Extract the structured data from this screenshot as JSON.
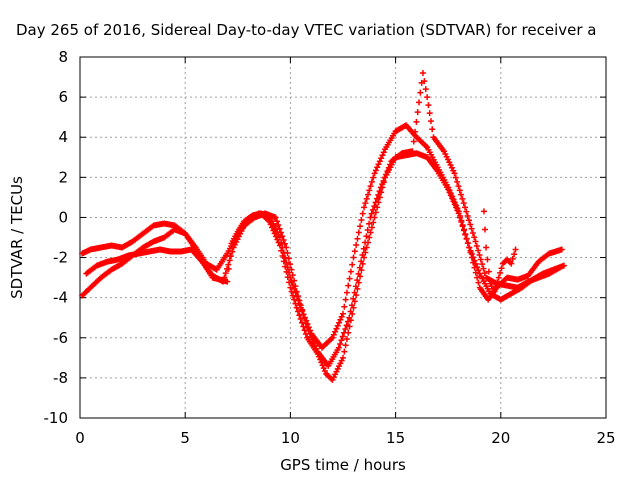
{
  "chart_data": {
    "type": "scatter",
    "title": "Day 265 of 2016, Sidereal Day-to-day VTEC variation (SDTVAR) for receiver a",
    "xlabel": "GPS time / hours",
    "ylabel": "SDTVAR / TECUs",
    "xlim": [
      0,
      25
    ],
    "ylim": [
      -10,
      8
    ],
    "xticks": [
      "0",
      "5",
      "10",
      "15",
      "20",
      "25"
    ],
    "yticks": [
      "-10",
      "-8",
      "-6",
      "-4",
      "-2",
      "0",
      "2",
      "4",
      "6",
      "8"
    ],
    "grid": true,
    "marker": "+",
    "series_color": "#ff0000",
    "series": [
      {
        "x": [
          0.1,
          0.5,
          1.0,
          1.5,
          2.0,
          2.5,
          3.0,
          3.5,
          4.0,
          4.5,
          5.0,
          5.5,
          6.0,
          6.3,
          7.0,
          7.2,
          7.5,
          7.8,
          8.2,
          8.6,
          9.0,
          9.5,
          10.0,
          10.3,
          10.8,
          11.3,
          11.7,
          12.0,
          12.5,
          13.0,
          13.5,
          14.0,
          14.5,
          15.0,
          15.5,
          16.0,
          16.5,
          17.0,
          17.5,
          18.0,
          18.5,
          19.0,
          19.4,
          19.8,
          20.3,
          20.8,
          21.3,
          21.8,
          22.3,
          22.9
        ],
        "y": [
          -1.8,
          -1.6,
          -1.5,
          -1.4,
          -1.5,
          -1.2,
          -0.8,
          -0.4,
          -0.3,
          -0.4,
          -0.8,
          -1.6,
          -2.5,
          -3.0,
          -3.2,
          -1.3,
          -0.7,
          -0.2,
          0.1,
          0.2,
          -0.2,
          -1.4,
          -3.5,
          -4.5,
          -6.0,
          -6.8,
          -7.8,
          -8.1,
          -7.0,
          -4.5,
          -2.0,
          0.0,
          2.0,
          3.0,
          3.1,
          3.2,
          3.0,
          2.3,
          1.4,
          0.2,
          -1.5,
          -3.5,
          -4.1,
          -3.5,
          -3.0,
          -3.1,
          -2.9,
          -2.2,
          -1.8,
          -1.6
        ]
      },
      {
        "x": [
          0.1,
          0.5,
          1.0,
          1.5,
          2.0,
          2.5,
          3.0,
          3.5,
          4.0,
          4.5,
          5.0,
          5.5,
          6.0,
          6.5,
          7.0,
          7.5,
          8.0,
          8.5,
          9.0,
          9.5,
          10.0,
          10.5,
          11.0,
          11.5,
          12.0,
          12.5,
          13.0,
          13.5,
          14.0,
          14.5,
          15.0,
          15.5,
          16.0,
          16.5,
          17.0,
          17.5,
          18.0,
          18.5,
          19.0,
          19.5,
          20.0,
          20.5,
          21.0,
          21.5,
          22.0,
          22.5,
          23.0
        ],
        "y": [
          -3.9,
          -3.5,
          -3.0,
          -2.6,
          -2.3,
          -1.9,
          -1.5,
          -1.2,
          -1.0,
          -0.6,
          -0.8,
          -1.5,
          -2.3,
          -2.6,
          -1.8,
          -0.8,
          -0.2,
          0.2,
          0.1,
          -1.0,
          -3.0,
          -4.5,
          -5.8,
          -6.5,
          -6.0,
          -4.8,
          -2.0,
          0.5,
          2.2,
          3.4,
          4.3,
          4.6,
          4.0,
          3.5,
          2.5,
          1.5,
          0.3,
          -1.5,
          -2.8,
          -3.8,
          -4.1,
          -3.8,
          -3.5,
          -3.1,
          -2.8,
          -2.6,
          -2.4
        ]
      },
      {
        "x": [
          0.3,
          0.8,
          1.3,
          1.8,
          2.3,
          2.8,
          3.3,
          3.8,
          4.3,
          4.8,
          5.3,
          5.8,
          6.3,
          6.8,
          7.3,
          7.8,
          8.3,
          8.8,
          9.3,
          9.8,
          10.3,
          10.8,
          11.3,
          11.8,
          12.3,
          12.8,
          13.3,
          13.8,
          14.3,
          14.8,
          15.3,
          15.8,
          16.3,
          16.5,
          16.8,
          17.3,
          17.8,
          18.3,
          18.8,
          19.3,
          19.8,
          20.3,
          20.8,
          21.3,
          21.8,
          22.3,
          22.8
        ],
        "y": [
          -2.8,
          -2.4,
          -2.2,
          -2.1,
          -1.9,
          -1.8,
          -1.7,
          -1.6,
          -1.7,
          -1.7,
          -1.6,
          -2.2,
          -2.9,
          -3.2,
          -1.5,
          -0.4,
          0.0,
          0.2,
          0.0,
          -1.5,
          -3.7,
          -5.5,
          -6.7,
          -7.4,
          -6.5,
          -5.0,
          -2.5,
          0.0,
          1.5,
          2.8,
          3.2,
          3.3,
          7.2,
          6.0,
          4.0,
          3.3,
          2.2,
          0.5,
          -1.2,
          -3.0,
          -3.3,
          -3.4,
          -3.5,
          -3.2,
          -3.0,
          -2.8,
          -2.5
        ]
      },
      {
        "x": [
          19.2,
          19.3,
          19.5,
          19.7,
          19.9,
          20.1,
          20.3,
          20.5,
          20.7
        ],
        "y": [
          0.3,
          -1.5,
          -3.3,
          -3.7,
          -3.0,
          -2.3,
          -2.1,
          -2.3,
          -1.6
        ]
      }
    ]
  }
}
